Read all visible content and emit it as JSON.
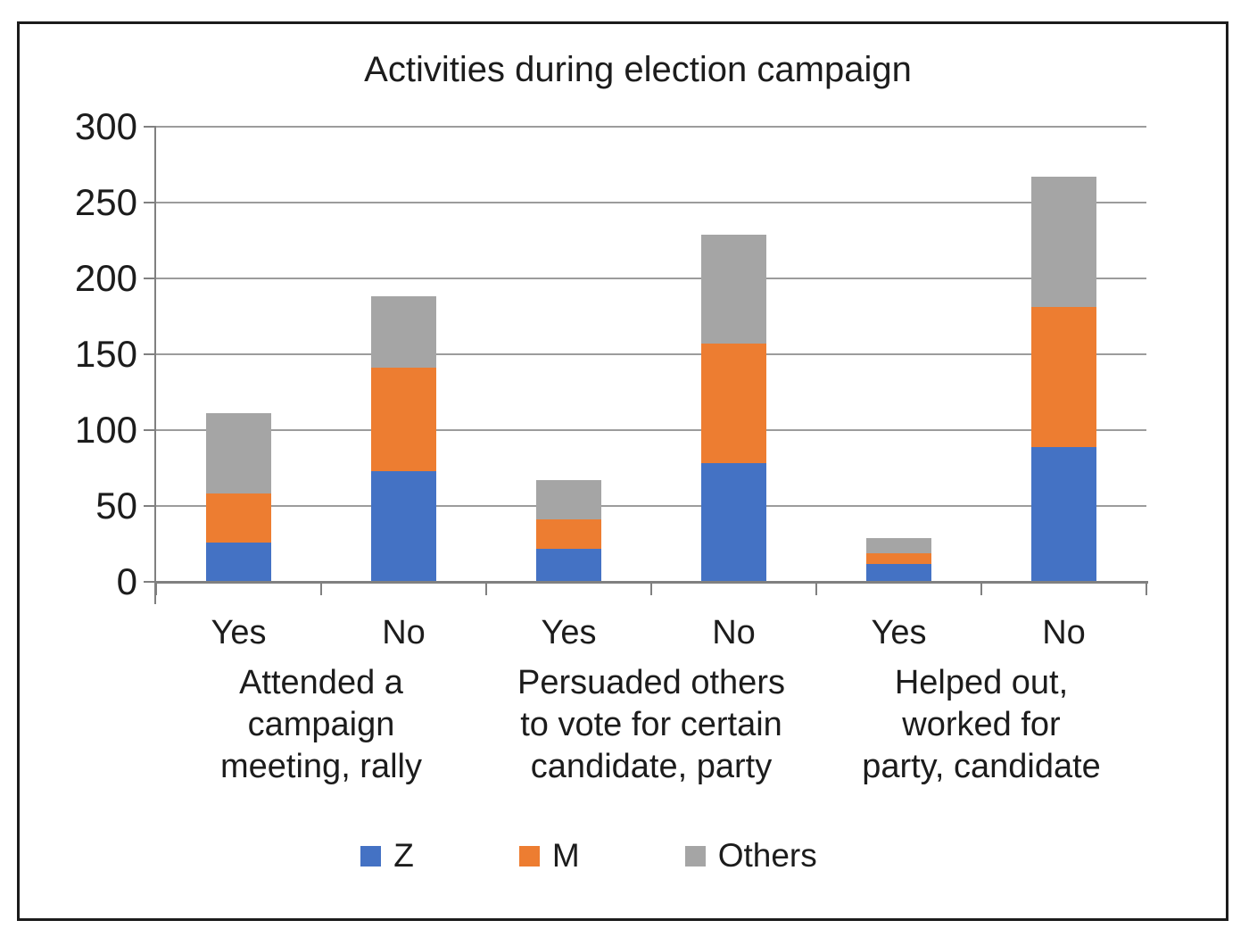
{
  "chart_data": {
    "type": "bar",
    "variant": "stacked",
    "title": "Activities during election campaign",
    "y_axis": {
      "min": 0,
      "max": 300,
      "step": 50,
      "tick_values": [
        0,
        50,
        100,
        150,
        200,
        250,
        300
      ],
      "tick_labels": [
        "0",
        "50",
        "100",
        "150",
        "200",
        "250",
        "300"
      ]
    },
    "x_axis": {
      "category_labels": [
        "Yes",
        "No",
        "Yes",
        "No",
        "Yes",
        "No"
      ],
      "group_labels": [
        [
          "Attended a",
          "campaign",
          "meeting, rally"
        ],
        [
          "Persuaded others",
          "to vote for certain",
          "candidate, party"
        ],
        [
          "Helped out,",
          "worked for",
          "party, candidate"
        ]
      ]
    },
    "series": [
      {
        "name": "Z",
        "color": "#4472C4",
        "values": [
          26,
          73,
          22,
          78,
          12,
          89
        ]
      },
      {
        "name": "M",
        "color": "#ED7D31",
        "values": [
          32,
          68,
          19,
          79,
          7,
          92
        ]
      },
      {
        "name": "Others",
        "color": "#A5A5A5",
        "values": [
          53,
          47,
          26,
          72,
          10,
          86
        ]
      }
    ],
    "stack_totals": [
      111,
      188,
      67,
      229,
      29,
      267
    ],
    "legend": {
      "position": "bottom",
      "labels": [
        "Z",
        "M",
        "Others"
      ]
    },
    "grid": true,
    "colors": {
      "axis": "#808080",
      "gridline": "#9c9c9c",
      "text": "#1c1c1c",
      "border": "#1b1b1b",
      "background": "#ffffff"
    }
  }
}
